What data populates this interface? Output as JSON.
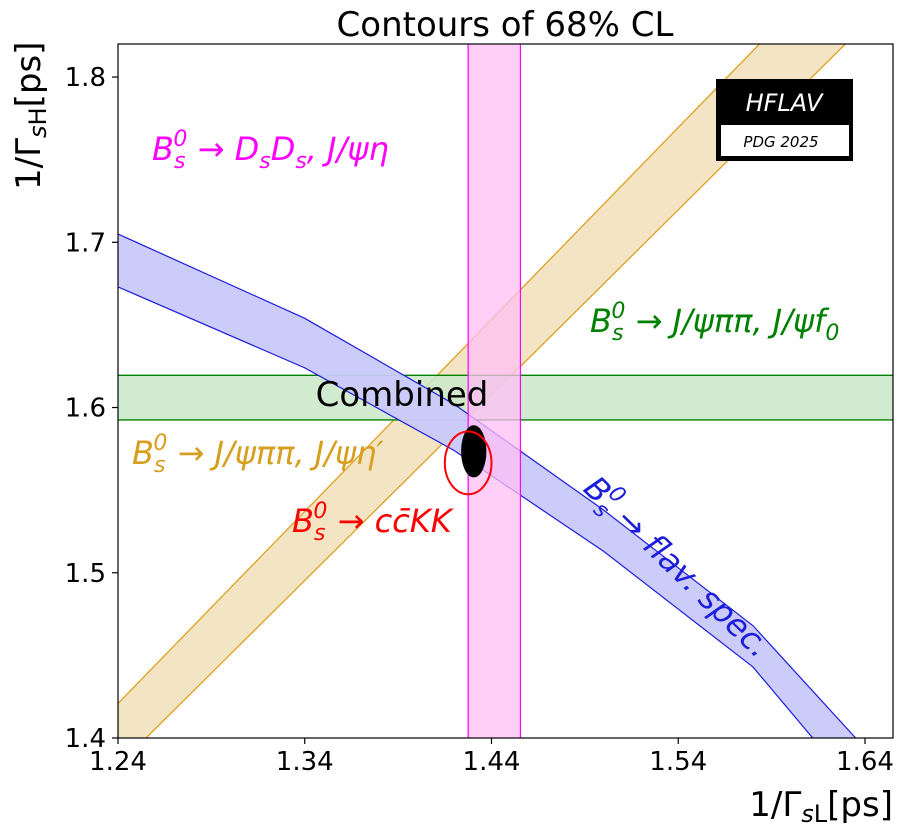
{
  "chart_data": {
    "type": "contour",
    "title": "Contours of 68% CL",
    "xlabel": "1/Γ_sL[ps]",
    "ylabel": "1/Γ_sH[ps]",
    "xlim": [
      1.24,
      1.655
    ],
    "ylim": [
      1.4,
      1.82
    ],
    "x_ticks": [
      "1.24",
      "1.34",
      "1.44",
      "1.54",
      "1.64"
    ],
    "y_ticks": [
      "1.4",
      "1.5",
      "1.6",
      "1.7",
      "1.8"
    ],
    "grid": false,
    "logo": {
      "line1": "HFLAV",
      "line2": "PDG 2025"
    },
    "combined": {
      "label": "Combined",
      "center": [
        1.4305,
        1.5735
      ],
      "semi_x": 0.0065,
      "semi_y": 0.0155,
      "color": "#000000"
    },
    "series": [
      {
        "name": "B_s^0 → D_s D_s, J/ψη",
        "shape": "vertical_band",
        "x_range": [
          1.4275,
          1.4555
        ],
        "color": "#ff00ff",
        "fill": "#ffbff5"
      },
      {
        "name": "B_s^0 → J/ψππ, J/ψf_0",
        "shape": "horizontal_band",
        "y_range": [
          1.5925,
          1.6195
        ],
        "color": "#008000",
        "fill": "#c9e7c9"
      },
      {
        "name": "B_s^0 → J/ψππ, J/ψη'",
        "shape": "diagonal_band",
        "lower_line": [
          [
            1.255,
            1.4
          ],
          [
            1.6295,
            1.82
          ]
        ],
        "upper_line": [
          [
            1.222,
            1.4
          ],
          [
            1.5835,
            1.82
          ]
        ],
        "color": "#e0a020",
        "fill": "#f1e0b8"
      },
      {
        "name": "B_s^0 → flav. spec.",
        "shape": "curved_band",
        "upper_edge": [
          [
            1.24,
            1.705
          ],
          [
            1.34,
            1.654
          ],
          [
            1.42,
            1.602
          ],
          [
            1.5,
            1.538
          ],
          [
            1.58,
            1.468
          ],
          [
            1.635,
            1.4
          ]
        ],
        "lower_edge": [
          [
            1.24,
            1.673
          ],
          [
            1.34,
            1.624
          ],
          [
            1.42,
            1.574
          ],
          [
            1.5,
            1.513
          ],
          [
            1.58,
            1.443
          ],
          [
            1.612,
            1.4
          ]
        ],
        "color": "#1c1cdd",
        "fill": "#c9c9fa"
      },
      {
        "name": "B_s^0 → c c̄ K K",
        "shape": "ellipse",
        "center": [
          1.4275,
          1.5665
        ],
        "semi_x": 0.0125,
        "semi_y": 0.019,
        "color": "#ff0000"
      }
    ],
    "labels": {
      "dsds": {
        "base": "B",
        "sub": "s",
        "sup": "0",
        "rest": " → D",
        "rest_sub": "s",
        "rest2": "D",
        "rest2_sub": "s",
        "rest3": ", J/ψη",
        "color": "#ff00ff"
      },
      "jpsif0": {
        "base": "B",
        "sub": "s",
        "sup": "0",
        "rest": " → J/ψππ, J/ψf",
        "rest_sub": "0",
        "color": "#008000"
      },
      "jpsieta": {
        "base": "B",
        "sub": "s",
        "sup": "0",
        "rest": " → J/ψππ, J/ψη′",
        "color": "#d69f20"
      },
      "cckk": {
        "base": "B",
        "sub": "s",
        "sup": "0",
        "rest": " → cc̄KK",
        "color": "#ff0000"
      },
      "flav": {
        "base": "B",
        "sub": "s",
        "sup": "0",
        "rest": " →  flav. spec.",
        "color": "#1c1cdd"
      }
    }
  }
}
